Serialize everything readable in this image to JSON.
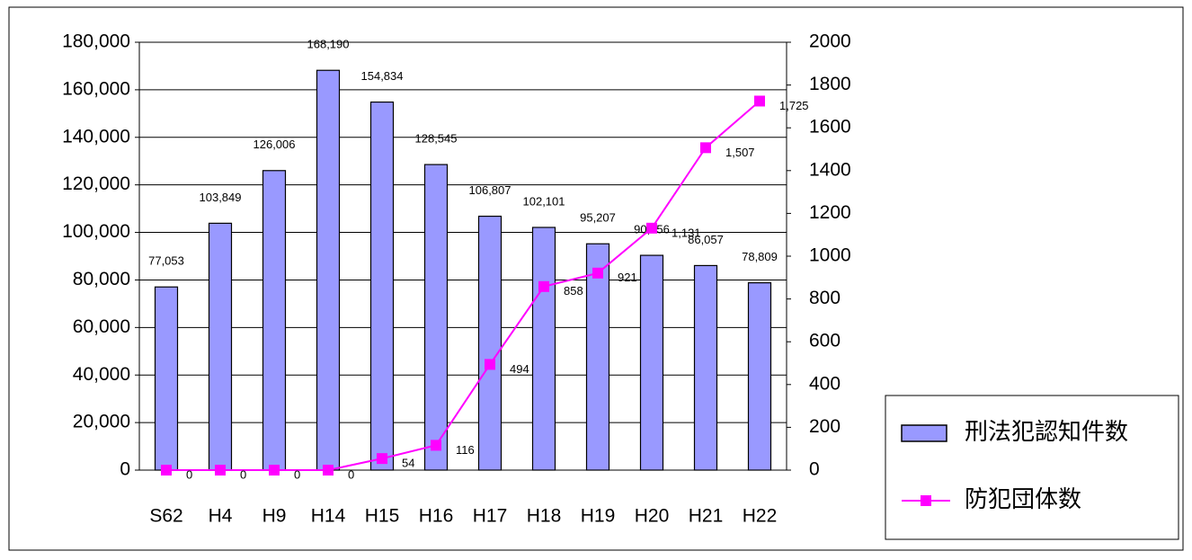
{
  "chart_data": {
    "type": "bar-line",
    "categories": [
      "S62",
      "H4",
      "H9",
      "H14",
      "H15",
      "H16",
      "H17",
      "H18",
      "H19",
      "H20",
      "H21",
      "H22"
    ],
    "series": [
      {
        "name": "刑法犯認知件数",
        "type": "bar",
        "color": "#9999ff",
        "axis": "y",
        "values": [
          77053,
          103849,
          126006,
          168190,
          154834,
          128545,
          106807,
          102101,
          95207,
          90356,
          86057,
          78809
        ],
        "value_labels": [
          "77,053",
          "103,849",
          "126,006",
          "168,190",
          "154,834",
          "128,545",
          "106,807",
          "102,101",
          "95,207",
          "90,356",
          "86,057",
          "78,809"
        ]
      },
      {
        "name": "防犯団体数",
        "type": "line",
        "color": "#ff00ff",
        "axis": "y2",
        "values": [
          0,
          0,
          0,
          0,
          54,
          116,
          494,
          858,
          921,
          1131,
          1507,
          1725
        ],
        "value_labels": [
          "0",
          "0",
          "0",
          "0",
          "54",
          "116",
          "494",
          "858",
          "921",
          "1,131",
          "1,507",
          "1,725"
        ]
      }
    ],
    "ylim": [
      0,
      180000
    ],
    "yticks": [
      0,
      {
        "value": 20000,
        "label": "20,000"
      },
      {
        "value": 40000,
        "label": "40,000"
      },
      {
        "value": 60000,
        "label": "60,000"
      },
      {
        "value": 80000,
        "label": "80,000"
      },
      {
        "value": 100000,
        "label": "100,000"
      },
      {
        "value": 120000,
        "label": "120,000"
      },
      {
        "value": 140000,
        "label": "140,000"
      },
      {
        "value": 160000,
        "label": "160,000"
      },
      {
        "value": 180000,
        "label": "180,000"
      }
    ],
    "y2lim": [
      0,
      2000
    ],
    "y2ticks": [
      0,
      200,
      400,
      600,
      800,
      1000,
      1200,
      1400,
      1600,
      1800,
      2000
    ],
    "grid": true,
    "legend": "lower right"
  }
}
